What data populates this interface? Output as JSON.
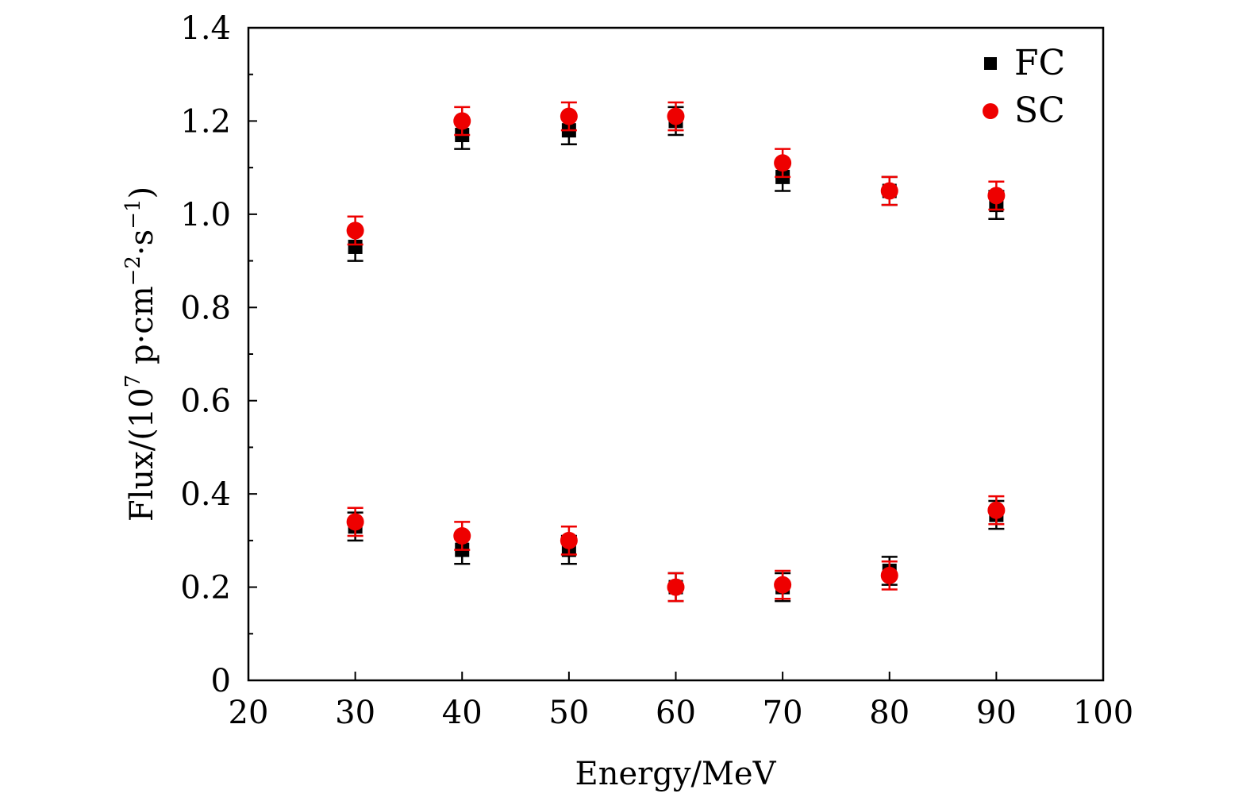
{
  "chart_data": {
    "type": "scatter",
    "title": "",
    "xlabel": "Energy/MeV",
    "ylabel_parts": {
      "prefix": "Flux/(10",
      "exp1": "7",
      "mid": " p·cm",
      "exp2": "−2",
      "mid2": "·s",
      "exp3": "−1",
      "suffix": ")"
    },
    "xlim": [
      20,
      100
    ],
    "ylim": [
      0,
      1.4
    ],
    "x_ticks": [
      20,
      30,
      40,
      50,
      60,
      70,
      80,
      90,
      100
    ],
    "x_tick_labels": [
      "20",
      "30",
      "40",
      "50",
      "60",
      "70",
      "80",
      "90",
      "100"
    ],
    "y_ticks": [
      0,
      0.2,
      0.4,
      0.6,
      0.8,
      1.0,
      1.2,
      1.4
    ],
    "y_tick_labels": [
      "0",
      "0.2",
      "0.4",
      "0.6",
      "0.8",
      "1.0",
      "1.2",
      "1.4"
    ],
    "y_minor_step": 0.1,
    "grid": false,
    "legend_position": "top-right",
    "series": [
      {
        "name": "FC",
        "marker": "square",
        "color": "#000000",
        "points": [
          {
            "x": 30,
            "y": 0.93,
            "err": 0.03
          },
          {
            "x": 40,
            "y": 1.17,
            "err": 0.03
          },
          {
            "x": 50,
            "y": 1.18,
            "err": 0.03
          },
          {
            "x": 60,
            "y": 1.2,
            "err": 0.03
          },
          {
            "x": 70,
            "y": 1.08,
            "err": 0.03
          },
          {
            "x": 80,
            "y": 1.05,
            "err": 0.03
          },
          {
            "x": 90,
            "y": 1.02,
            "err": 0.03
          },
          {
            "x": 30,
            "y": 0.33,
            "err": 0.03
          },
          {
            "x": 40,
            "y": 0.28,
            "err": 0.03
          },
          {
            "x": 50,
            "y": 0.28,
            "err": 0.03
          },
          {
            "x": 60,
            "y": 0.2,
            "err": 0.03
          },
          {
            "x": 70,
            "y": 0.2,
            "err": 0.03
          },
          {
            "x": 80,
            "y": 0.235,
            "err": 0.03
          },
          {
            "x": 90,
            "y": 0.355,
            "err": 0.03
          }
        ]
      },
      {
        "name": "SC",
        "marker": "circle",
        "color": "#ee0000",
        "points": [
          {
            "x": 30,
            "y": 0.965,
            "err": 0.03
          },
          {
            "x": 40,
            "y": 1.2,
            "err": 0.03
          },
          {
            "x": 50,
            "y": 1.21,
            "err": 0.03
          },
          {
            "x": 60,
            "y": 1.21,
            "err": 0.03
          },
          {
            "x": 70,
            "y": 1.11,
            "err": 0.03
          },
          {
            "x": 80,
            "y": 1.05,
            "err": 0.03
          },
          {
            "x": 90,
            "y": 1.04,
            "err": 0.03
          },
          {
            "x": 30,
            "y": 0.34,
            "err": 0.03
          },
          {
            "x": 40,
            "y": 0.31,
            "err": 0.03
          },
          {
            "x": 50,
            "y": 0.3,
            "err": 0.03
          },
          {
            "x": 60,
            "y": 0.2,
            "err": 0.03
          },
          {
            "x": 70,
            "y": 0.205,
            "err": 0.03
          },
          {
            "x": 80,
            "y": 0.225,
            "err": 0.03
          },
          {
            "x": 90,
            "y": 0.365,
            "err": 0.03
          }
        ]
      }
    ]
  }
}
